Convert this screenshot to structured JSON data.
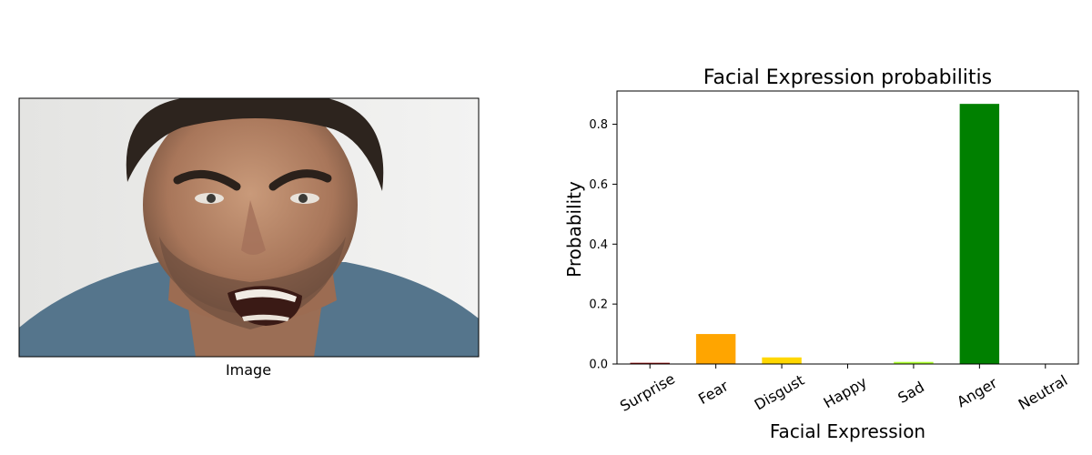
{
  "left_panel": {
    "xlabel": "Image"
  },
  "chart_data": {
    "type": "bar",
    "title": "Facial Expression probabilitis",
    "xlabel": "Facial Expression",
    "ylabel": "Probability",
    "categories": [
      "Surprise",
      "Fear",
      "Disgust",
      "Happy",
      "Sad",
      "Anger",
      "Neutral"
    ],
    "values": [
      0.004,
      0.1,
      0.022,
      0.0,
      0.007,
      0.868,
      0.0
    ],
    "colors": [
      "#8b0000",
      "#ffa500",
      "#ffd700",
      "#9acd32",
      "#adff2f",
      "#008000",
      "#87ceeb"
    ],
    "yticks": [
      0.0,
      0.2,
      0.4,
      0.6,
      0.8
    ],
    "ytick_labels": [
      "0.0",
      "0.2",
      "0.4",
      "0.6",
      "0.8"
    ],
    "ylim": [
      0,
      0.911
    ],
    "grid": false,
    "xtick_rotation": -30
  }
}
